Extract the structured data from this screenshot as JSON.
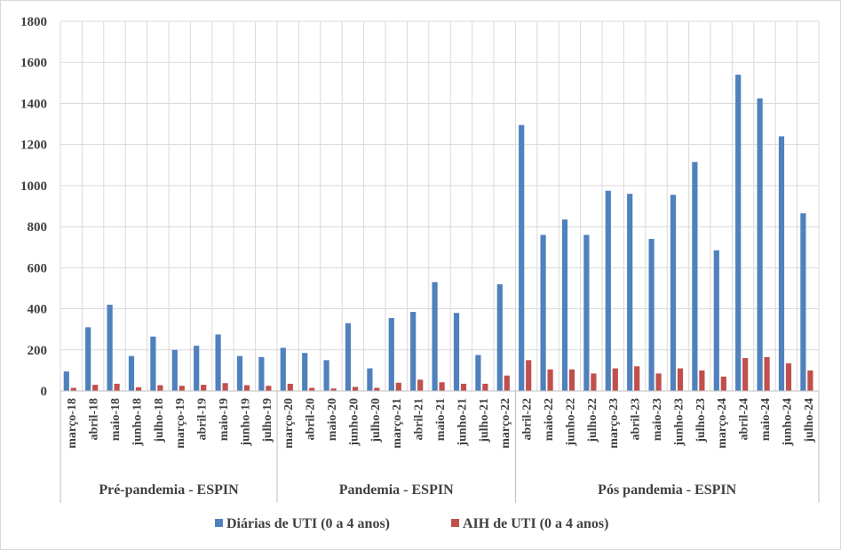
{
  "chart_data": {
    "type": "bar",
    "categories": [
      "março-18",
      "abril-18",
      "maio-18",
      "junho-18",
      "julho-18",
      "março-19",
      "abril-19",
      "maio-19",
      "junho-19",
      "julho-19",
      "março-20",
      "abril-20",
      "maio-20",
      "junho-20",
      "julho-20",
      "março-21",
      "abril-21",
      "maio-21",
      "junho-21",
      "julho-21",
      "março-22",
      "abril-22",
      "maio-22",
      "junho-22",
      "julho-22",
      "março-23",
      "abril-23",
      "maio-23",
      "junho-23",
      "julho-23",
      "março-24",
      "abril-24",
      "maio-24",
      "junho-24",
      "julho-24"
    ],
    "groups": [
      {
        "label": "Pré-pandemia - ESPIN",
        "start": 0,
        "count": 10
      },
      {
        "label": "Pandemia - ESPIN",
        "start": 10,
        "count": 11
      },
      {
        "label": "Pós pandemia - ESPIN",
        "start": 21,
        "count": 14
      }
    ],
    "series": [
      {
        "name": "Diárias de UTI (0 a 4 anos)",
        "color": "#4f81bd",
        "values": [
          95,
          310,
          420,
          170,
          265,
          200,
          220,
          275,
          170,
          165,
          210,
          185,
          150,
          330,
          110,
          355,
          385,
          530,
          380,
          175,
          520,
          1295,
          760,
          835,
          760,
          975,
          960,
          740,
          955,
          1115,
          685,
          1540,
          1425,
          1240,
          865
        ]
      },
      {
        "name": "AIH de UTI (0 a 4 anos)",
        "color": "#c0504d",
        "values": [
          15,
          30,
          35,
          18,
          28,
          25,
          30,
          38,
          28,
          25,
          35,
          15,
          12,
          20,
          15,
          40,
          55,
          42,
          35,
          35,
          75,
          150,
          105,
          105,
          85,
          110,
          120,
          85,
          110,
          100,
          70,
          160,
          165,
          135,
          100
        ]
      }
    ],
    "ylim": [
      0,
      1800
    ],
    "yticks": [
      0,
      200,
      400,
      600,
      800,
      1000,
      1200,
      1400,
      1600,
      1800
    ],
    "grid": true,
    "legend_position": "bottom"
  }
}
